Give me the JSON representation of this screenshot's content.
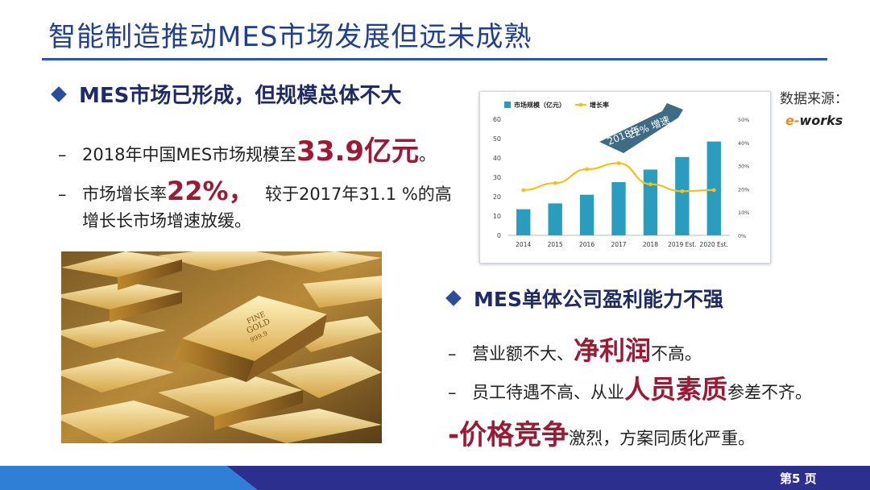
{
  "title": "智能制造推动MES市场发展但远未成熟",
  "left": {
    "heading": "MES市场已形成，但规模总体不大",
    "bullet1": {
      "pre": "2018年中国MES市场规模至",
      "emph": "33.9亿元",
      "post": "。"
    },
    "bullet2": {
      "pre": "市场增长率",
      "emph": "22%，",
      "post": "  较于2017年31.1 %的高"
    },
    "bullet2_cont": "增长长市场增速放缓。"
  },
  "source": {
    "label": "数据来源：",
    "logo_e": "e-",
    "logo_rest": "works"
  },
  "chart_data": {
    "type": "bar",
    "categories": [
      "2014",
      "2015",
      "2016",
      "2017",
      "2018",
      "2019 Est.",
      "2020 Est."
    ],
    "series": [
      {
        "name": "市场规模（亿元）",
        "type": "bar",
        "axis": "left",
        "values": [
          13.5,
          16.5,
          21,
          27.5,
          34,
          40.5,
          48.5
        ],
        "color": "#2a9dbf"
      },
      {
        "name": "增长率",
        "type": "line",
        "axis": "right",
        "values": [
          19.5,
          22.5,
          28.5,
          31.1,
          22,
          19,
          19.5
        ],
        "color": "#f2c21a"
      }
    ],
    "y_left": {
      "min": 0,
      "max": 60,
      "ticks": [
        "0",
        "10",
        "20",
        "30",
        "40",
        "50",
        "60"
      ]
    },
    "y_right": {
      "min": 0,
      "max": 50,
      "ticks": [
        "0%",
        "10%",
        "20%",
        "30%",
        "40%",
        "50%"
      ]
    },
    "callout": {
      "line1": "2018年",
      "line2": "22% 增速"
    },
    "grid": false,
    "legend_position": "top-left"
  },
  "right": {
    "heading": "MES单体公司盈利能力不强",
    "bullet1": {
      "pre": "营业额不大、",
      "emph": "净利润",
      "post": "不高。"
    },
    "bullet2": {
      "pre": "员工待遇不高、从业",
      "emph": "人员素质",
      "post": "参差不齐。"
    },
    "bullet3": {
      "dash": "-",
      "emph": "价格竞争",
      "post": "激烈，方案同质化严重。"
    }
  },
  "photo": {
    "bar_text_line1": "FINE",
    "bar_text_line2": "GOLD",
    "bar_text_line3": "999.9"
  },
  "footer": {
    "page": "第5 页"
  }
}
